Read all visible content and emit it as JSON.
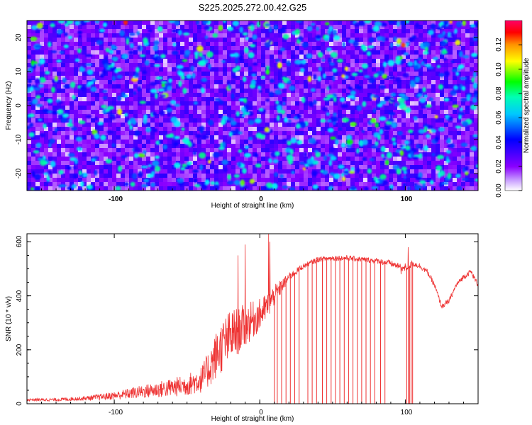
{
  "figure": {
    "title": "S225.2025.272.00.42.G25"
  },
  "chart_data": [
    {
      "type": "heatmap",
      "title": "S225.2025.272.00.42.G25",
      "xlabel": "Height of straight line (km)",
      "ylabel": "Frequency (Hz)",
      "xlim": [
        -160,
        150
      ],
      "ylim": [
        -25,
        25
      ],
      "x_ticks": [
        -100,
        0,
        100
      ],
      "x_tick_labels": [
        "-100",
        "0",
        "100"
      ],
      "y_ticks": [
        -20,
        -10,
        0,
        10,
        20
      ],
      "y_tick_labels": [
        "-20",
        "-10",
        "0",
        "10",
        "20"
      ],
      "colorbar": {
        "label": "Normalized spectral amplitude",
        "range": [
          0.0,
          0.14
        ],
        "ticks": [
          0.0,
          0.02,
          0.04,
          0.06,
          0.08,
          0.1,
          0.12
        ],
        "tick_labels": [
          "0.00",
          "0.02",
          "0.04",
          "0.06",
          "0.08",
          "0.10",
          "0.12"
        ],
        "colormap": [
          "#ffffff",
          "#8a00ff",
          "#0000ff",
          "#00ffff",
          "#00ff00",
          "#ffff00",
          "#ff0000",
          "#ff0066"
        ]
      },
      "typical_value_range": [
        0.01,
        0.06
      ],
      "peak_values": [
        0.1,
        0.12
      ]
    },
    {
      "type": "line",
      "xlabel": "Height of straight line (km)",
      "ylabel": "SNR (10 * v/v)",
      "xlim": [
        -160,
        150
      ],
      "ylim": [
        0,
        630
      ],
      "x_ticks": [
        -100,
        0,
        100
      ],
      "x_tick_labels": [
        "-100",
        "0",
        "100"
      ],
      "y_ticks": [
        0,
        200,
        400,
        600
      ],
      "y_tick_labels": [
        "0",
        "200",
        "400",
        "600"
      ],
      "series": [
        {
          "name": "SNR",
          "color": "#ee3333",
          "envelope_x": [
            -160,
            -140,
            -120,
            -100,
            -80,
            -60,
            -50,
            -40,
            -35,
            -30,
            -25,
            -20,
            -15,
            -10,
            -5,
            0,
            5,
            10,
            20,
            30,
            40,
            50,
            60,
            70,
            80,
            90,
            95,
            100,
            105,
            110,
            115,
            120,
            125,
            130,
            135,
            140,
            145,
            150
          ],
          "envelope_y": [
            15,
            15,
            20,
            30,
            45,
            60,
            70,
            90,
            130,
            180,
            220,
            250,
            270,
            290,
            310,
            330,
            360,
            400,
            470,
            510,
            535,
            540,
            540,
            535,
            530,
            520,
            510,
            500,
            520,
            510,
            490,
            440,
            360,
            380,
            440,
            470,
            490,
            440
          ],
          "noise_amplitude": [
            5,
            6,
            8,
            15,
            25,
            35,
            40,
            50,
            70,
            90,
            100,
            100,
            90,
            80,
            70,
            60,
            50,
            40,
            15,
            10,
            10,
            10,
            10,
            10,
            10,
            12,
            12,
            12,
            12,
            10,
            10,
            10,
            10,
            10,
            10,
            10,
            10,
            10
          ],
          "dropouts_x": [
            10,
            12,
            15,
            18,
            21,
            24,
            27,
            33,
            36,
            39,
            43,
            46,
            49,
            52,
            55,
            58,
            61,
            64,
            67,
            70,
            73,
            76,
            79,
            83,
            86,
            101,
            102,
            103,
            104,
            105
          ],
          "spikes": [
            [
              -15,
              550
            ],
            [
              -10,
              590
            ],
            [
              6,
              630
            ],
            [
              7,
              600
            ],
            [
              97,
              480
            ],
            [
              100,
              520
            ],
            [
              102,
              580
            ]
          ]
        }
      ]
    }
  ]
}
